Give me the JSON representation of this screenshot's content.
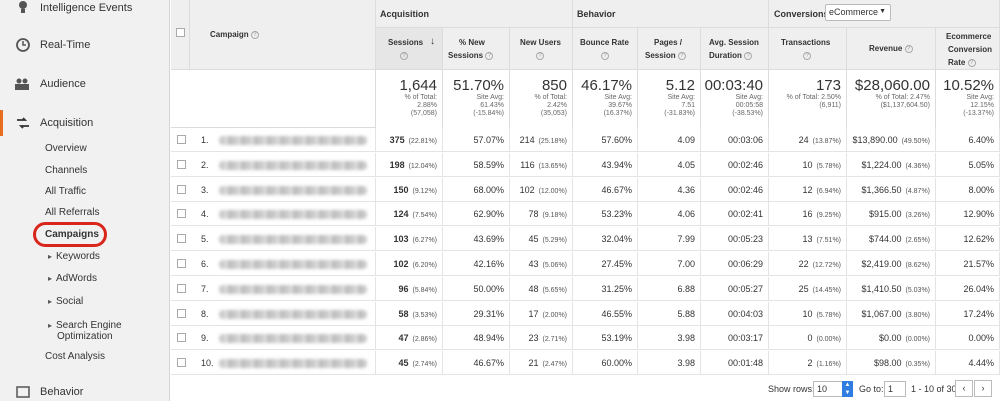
{
  "sidebar": {
    "intelligence": "Intelligence Events",
    "realtime": "Real-Time",
    "audience": "Audience",
    "acquisition": "Acquisition",
    "sub": [
      "Overview",
      "Channels",
      "All Traffic",
      "All Referrals",
      "Campaigns",
      "Keywords",
      "AdWords",
      "Social",
      "Search Engine",
      "Optimization",
      "Cost Analysis"
    ],
    "behavior": "Behavior"
  },
  "header": {
    "campaign": "Campaign",
    "acquisition": "Acquisition",
    "behavior": "Behavior",
    "conversions": "Conversions",
    "conv_select": "eCommerce",
    "cols": [
      "Sessions",
      "% New",
      "Sessions",
      "New Users",
      "Bounce Rate",
      "Pages /",
      "Session",
      "Avg. Session",
      "Duration",
      "Transactions",
      "Revenue",
      "Ecommerce",
      "Conversion",
      "Rate"
    ]
  },
  "totals": [
    {
      "big": "1,644",
      "l1": "% of Total:",
      "l2": "2.88%",
      "l3": "(57,058)"
    },
    {
      "big": "51.70%",
      "l1": "Site Avg:",
      "l2": "61.43%",
      "l3": "(-15.84%)"
    },
    {
      "big": "850",
      "l1": "% of Total:",
      "l2": "2.42%",
      "l3": "(35,053)"
    },
    {
      "big": "46.17%",
      "l1": "Site Avg:",
      "l2": "39.67%",
      "l3": "(16.37%)"
    },
    {
      "big": "5.12",
      "l1": "Site Avg:",
      "l2": "7.51",
      "l3": "(-31.83%)"
    },
    {
      "big": "00:03:40",
      "l1": "Site Avg:",
      "l2": "00:05:58",
      "l3": "(-38.53%)"
    },
    {
      "big": "173",
      "l1": "% of Total: 2.50%",
      "l2": "(6,911)",
      "l3": ""
    },
    {
      "big": "$28,060.00",
      "l1": "% of Total: 2.47%",
      "l2": "($1,137,604.50)",
      "l3": ""
    },
    {
      "big": "10.52%",
      "l1": "Site Avg:",
      "l2": "12.15%",
      "l3": "(-13.37%)"
    }
  ],
  "rows": [
    {
      "idx": "1.",
      "s": "375",
      "sp": "(22.81%)",
      "ns": "57.07%",
      "nu": "214",
      "nup": "(25.18%)",
      "br": "57.60%",
      "pps": "4.09",
      "dur": "00:03:06",
      "tr": "24",
      "trp": "(13.87%)",
      "rev": "$13,890.00",
      "revp": "(49.50%)",
      "cr": "6.40%"
    },
    {
      "idx": "2.",
      "s": "198",
      "sp": "(12.04%)",
      "ns": "58.59%",
      "nu": "116",
      "nup": "(13.65%)",
      "br": "43.94%",
      "pps": "4.05",
      "dur": "00:02:46",
      "tr": "10",
      "trp": "(5.78%)",
      "rev": "$1,224.00",
      "revp": "(4.36%)",
      "cr": "5.05%"
    },
    {
      "idx": "3.",
      "s": "150",
      "sp": "(9.12%)",
      "ns": "68.00%",
      "nu": "102",
      "nup": "(12.00%)",
      "br": "46.67%",
      "pps": "4.36",
      "dur": "00:02:46",
      "tr": "12",
      "trp": "(6.94%)",
      "rev": "$1,366.50",
      "revp": "(4.87%)",
      "cr": "8.00%"
    },
    {
      "idx": "4.",
      "s": "124",
      "sp": "(7.54%)",
      "ns": "62.90%",
      "nu": "78",
      "nup": "(9.18%)",
      "br": "53.23%",
      "pps": "4.06",
      "dur": "00:02:41",
      "tr": "16",
      "trp": "(9.25%)",
      "rev": "$915.00",
      "revp": "(3.26%)",
      "cr": "12.90%"
    },
    {
      "idx": "5.",
      "s": "103",
      "sp": "(6.27%)",
      "ns": "43.69%",
      "nu": "45",
      "nup": "(5.29%)",
      "br": "32.04%",
      "pps": "7.99",
      "dur": "00:05:23",
      "tr": "13",
      "trp": "(7.51%)",
      "rev": "$744.00",
      "revp": "(2.65%)",
      "cr": "12.62%"
    },
    {
      "idx": "6.",
      "s": "102",
      "sp": "(6.20%)",
      "ns": "42.16%",
      "nu": "43",
      "nup": "(5.06%)",
      "br": "27.45%",
      "pps": "7.00",
      "dur": "00:06:29",
      "tr": "22",
      "trp": "(12.72%)",
      "rev": "$2,419.00",
      "revp": "(8.62%)",
      "cr": "21.57%"
    },
    {
      "idx": "7.",
      "s": "96",
      "sp": "(5.84%)",
      "ns": "50.00%",
      "nu": "48",
      "nup": "(5.65%)",
      "br": "31.25%",
      "pps": "6.88",
      "dur": "00:05:27",
      "tr": "25",
      "trp": "(14.45%)",
      "rev": "$1,410.50",
      "revp": "(5.03%)",
      "cr": "26.04%"
    },
    {
      "idx": "8.",
      "s": "58",
      "sp": "(3.53%)",
      "ns": "29.31%",
      "nu": "17",
      "nup": "(2.00%)",
      "br": "46.55%",
      "pps": "5.88",
      "dur": "00:04:03",
      "tr": "10",
      "trp": "(5.78%)",
      "rev": "$1,067.00",
      "revp": "(3.80%)",
      "cr": "17.24%"
    },
    {
      "idx": "9.",
      "s": "47",
      "sp": "(2.86%)",
      "ns": "48.94%",
      "nu": "23",
      "nup": "(2.71%)",
      "br": "53.19%",
      "pps": "3.98",
      "dur": "00:03:17",
      "tr": "0",
      "trp": "(0.00%)",
      "rev": "$0.00",
      "revp": "(0.00%)",
      "cr": "0.00%"
    },
    {
      "idx": "10.",
      "s": "45",
      "sp": "(2.74%)",
      "ns": "46.67%",
      "nu": "21",
      "nup": "(2.47%)",
      "br": "60.00%",
      "pps": "3.98",
      "dur": "00:01:48",
      "tr": "2",
      "trp": "(1.16%)",
      "rev": "$98.00",
      "revp": "(0.35%)",
      "cr": "4.44%"
    }
  ],
  "footer": {
    "show_rows": "Show rows:",
    "rows_value": "10",
    "goto": "Go to:",
    "goto_value": "1",
    "range": "1 - 10 of 30"
  }
}
